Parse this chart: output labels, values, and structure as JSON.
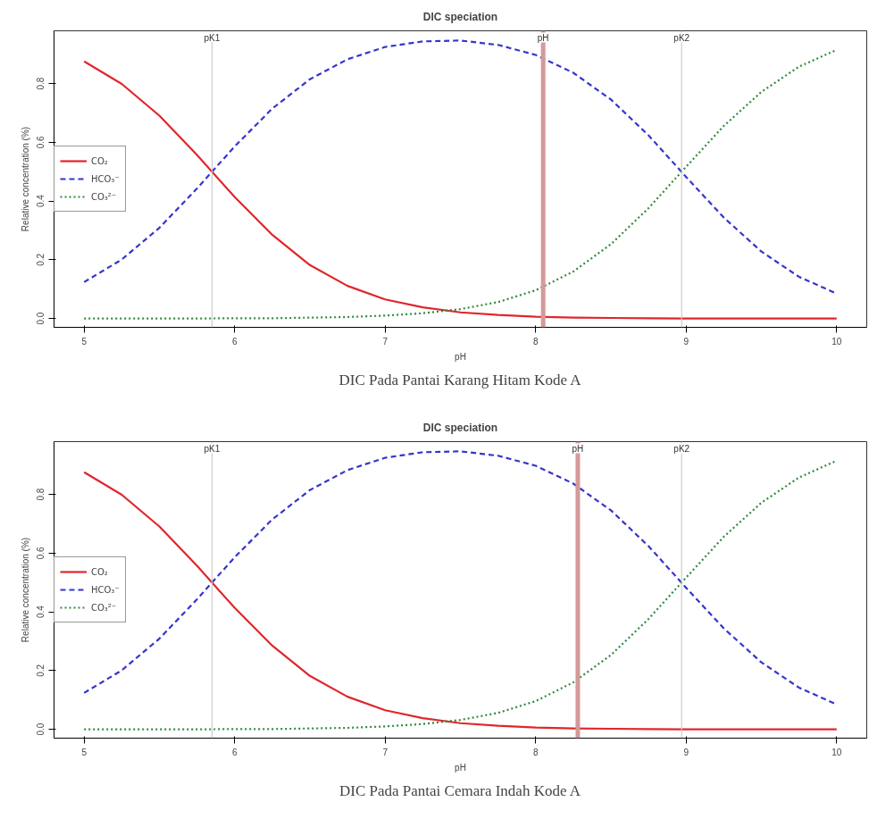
{
  "chart_data": [
    {
      "type": "line",
      "title": "DIC speciation",
      "xlabel": "pH",
      "ylabel": "Relative concentration (%)",
      "x": [
        5,
        5.25,
        5.5,
        5.75,
        6,
        6.25,
        6.5,
        6.75,
        7,
        7.25,
        7.5,
        7.75,
        8,
        8.25,
        8.5,
        8.75,
        9,
        9.25,
        9.5,
        9.75,
        10
      ],
      "series": [
        {
          "name": "CO₂",
          "color": "#e0262c",
          "line_style": "solid",
          "values": [
            0.876,
            0.799,
            0.691,
            0.557,
            0.414,
            0.285,
            0.182,
            0.111,
            0.065,
            0.038,
            0.021,
            0.012,
            0.006,
            0.003,
            0.002,
            0.001,
            0,
            0,
            0,
            0,
            0
          ]
        },
        {
          "name": "HCO₃⁻",
          "color": "#3535cc",
          "line_style": "dashed",
          "values": [
            0.124,
            0.201,
            0.309,
            0.443,
            0.586,
            0.715,
            0.815,
            0.883,
            0.925,
            0.944,
            0.947,
            0.932,
            0.898,
            0.837,
            0.746,
            0.624,
            0.482,
            0.344,
            0.228,
            0.142,
            0.085
          ]
        },
        {
          "name": "CO₃²⁻",
          "color": "#2f8a3a",
          "line_style": "dotted",
          "values": [
            0,
            0,
            0,
            0,
            0.001,
            0.001,
            0.003,
            0.005,
            0.01,
            0.018,
            0.032,
            0.056,
            0.096,
            0.16,
            0.253,
            0.376,
            0.517,
            0.656,
            0.772,
            0.858,
            0.915
          ]
        }
      ],
      "xlim": [
        4.8,
        10.2
      ],
      "ylim": [
        -0.03,
        0.98
      ],
      "xticks": [
        5,
        6,
        7,
        8,
        9,
        10
      ],
      "yticks": [
        {
          "value": 0,
          "label": "0.0"
        },
        {
          "value": 0.2,
          "label": "0.2"
        },
        {
          "value": 0.4,
          "label": "0.4"
        },
        {
          "value": 0.6,
          "label": "0.6"
        },
        {
          "value": 0.8,
          "label": "0.8"
        }
      ],
      "ref_lines": [
        {
          "axis": "x",
          "value": 5.85,
          "label": "pK1",
          "color": "#cccccc"
        },
        {
          "axis": "x",
          "value": 8.05,
          "label": "pH",
          "color": "#d49a9a"
        },
        {
          "axis": "x",
          "value": 8.97,
          "label": "pK2",
          "color": "#cccccc"
        }
      ],
      "legend": "left",
      "grid": false,
      "annotations": [
        "DIC Pada Pantai Karang Hitam Kode A"
      ]
    },
    {
      "type": "line",
      "title": "DIC speciation",
      "xlabel": "pH",
      "ylabel": "Relative concentration (%)",
      "x": [
        5,
        5.25,
        5.5,
        5.75,
        6,
        6.25,
        6.5,
        6.75,
        7,
        7.25,
        7.5,
        7.75,
        8,
        8.25,
        8.5,
        8.75,
        9,
        9.25,
        9.5,
        9.75,
        10
      ],
      "series": [
        {
          "name": "CO₂",
          "color": "#e0262c",
          "line_style": "solid",
          "values": [
            0.876,
            0.799,
            0.691,
            0.557,
            0.414,
            0.285,
            0.182,
            0.111,
            0.065,
            0.038,
            0.021,
            0.012,
            0.006,
            0.003,
            0.002,
            0.001,
            0,
            0,
            0,
            0,
            0
          ]
        },
        {
          "name": "HCO₃⁻",
          "color": "#3535cc",
          "line_style": "dashed",
          "values": [
            0.124,
            0.201,
            0.309,
            0.443,
            0.586,
            0.715,
            0.815,
            0.883,
            0.925,
            0.944,
            0.947,
            0.932,
            0.898,
            0.837,
            0.746,
            0.624,
            0.482,
            0.344,
            0.228,
            0.142,
            0.085
          ]
        },
        {
          "name": "CO₃²⁻",
          "color": "#2f8a3a",
          "line_style": "dotted",
          "values": [
            0,
            0,
            0,
            0,
            0.001,
            0.001,
            0.003,
            0.005,
            0.01,
            0.018,
            0.032,
            0.056,
            0.096,
            0.16,
            0.253,
            0.376,
            0.517,
            0.656,
            0.772,
            0.858,
            0.915
          ]
        }
      ],
      "xlim": [
        4.8,
        10.2
      ],
      "ylim": [
        -0.03,
        0.98
      ],
      "xticks": [
        5,
        6,
        7,
        8,
        9,
        10
      ],
      "yticks": [
        {
          "value": 0,
          "label": "0.0"
        },
        {
          "value": 0.2,
          "label": "0.2"
        },
        {
          "value": 0.4,
          "label": "0.4"
        },
        {
          "value": 0.6,
          "label": "0.6"
        },
        {
          "value": 0.8,
          "label": "0.8"
        }
      ],
      "ref_lines": [
        {
          "axis": "x",
          "value": 5.85,
          "label": "pK1",
          "color": "#cccccc"
        },
        {
          "axis": "x",
          "value": 8.28,
          "label": "pH",
          "color": "#d49a9a"
        },
        {
          "axis": "x",
          "value": 8.97,
          "label": "pK2",
          "color": "#cccccc"
        }
      ],
      "legend": "left",
      "grid": false,
      "annotations": [
        "DIC Pada Pantai Cemara Indah Kode A"
      ]
    }
  ]
}
